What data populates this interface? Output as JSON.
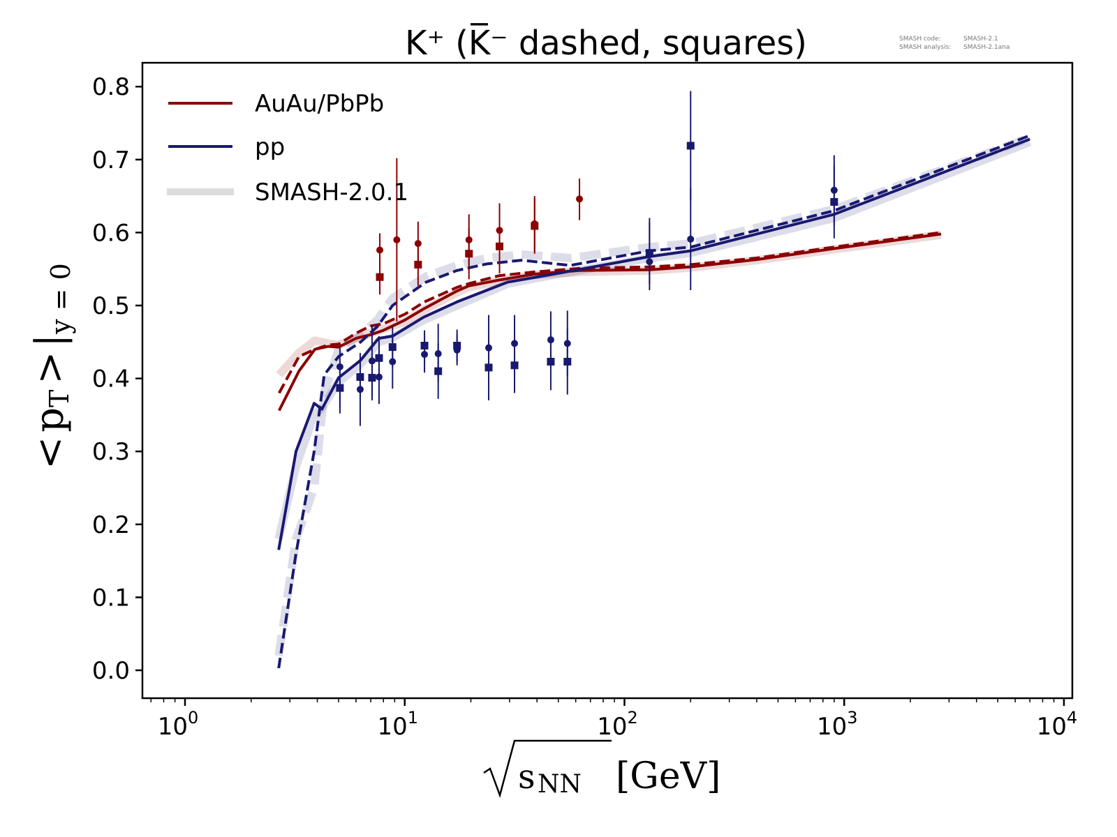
{
  "meta": {
    "line1_key": "SMASH code:",
    "line1_val": "SMASH-2.1",
    "line2_key": "SMASH analysis:",
    "line2_val": "SMASH-2.1ana"
  },
  "colors": {
    "auau": "#8b0000",
    "pp": "#191970",
    "smash_band": "#dcdcdc",
    "axis": "#000000"
  },
  "chart_data": {
    "type": "line",
    "title": "K⁺ (K̅⁻ dashed, squares)",
    "xlabel": "√s_NN [GeV]",
    "xlabel_parts": {
      "sqrt": "√",
      "s": "s",
      "sub": "NN",
      "unit": "[GeV]"
    },
    "ylabel": "<p_T> |_{y=0}",
    "ylabel_parts": {
      "lt": "<",
      "p": "p",
      "sub": "T",
      "gt": ">",
      "bar": "|",
      "cond": "y = 0"
    },
    "xscale": "log",
    "xlim": [
      0.65,
      11500
    ],
    "ylim": [
      -0.04,
      0.835
    ],
    "xticks": [
      {
        "value": 1,
        "base": "10",
        "exp": "0"
      },
      {
        "value": 10,
        "base": "10",
        "exp": "1"
      },
      {
        "value": 100,
        "base": "10",
        "exp": "2"
      },
      {
        "value": 1000,
        "base": "10",
        "exp": "3"
      },
      {
        "value": 10000,
        "base": "10",
        "exp": "4"
      }
    ],
    "yticks": [
      {
        "value": 0.0,
        "label": "0.0"
      },
      {
        "value": 0.1,
        "label": "0.1"
      },
      {
        "value": 0.2,
        "label": "0.2"
      },
      {
        "value": 0.3,
        "label": "0.3"
      },
      {
        "value": 0.4,
        "label": "0.4"
      },
      {
        "value": 0.5,
        "label": "0.5"
      },
      {
        "value": 0.6,
        "label": "0.6"
      },
      {
        "value": 0.7,
        "label": "0.7"
      },
      {
        "value": 0.8,
        "label": "0.8"
      }
    ],
    "grid": false,
    "legend_position": "top-left",
    "legend": [
      {
        "label": "AuAu/PbPb",
        "style": "auau"
      },
      {
        "label": "pp",
        "style": "pp"
      },
      {
        "label": "SMASH-2.0.1",
        "style": "smash_band"
      }
    ],
    "series": [
      {
        "name": "AuAu/PbPb K+ (SMASH-2.1)",
        "system": "auau",
        "particle": "K+",
        "dashed": false,
        "x": [
          2.68,
          3.3,
          3.9,
          4.5,
          5.0,
          6.0,
          7.0,
          8.0,
          10.0,
          12.3,
          17.3,
          19.6,
          27.0,
          39.0,
          62.4,
          130.0,
          200.0,
          400.0,
          900.0,
          2760.0
        ],
        "y": [
          0.356,
          0.41,
          0.44,
          0.444,
          0.443,
          0.455,
          0.46,
          0.466,
          0.48,
          0.496,
          0.52,
          0.527,
          0.535,
          0.543,
          0.548,
          0.549,
          0.553,
          0.563,
          0.578,
          0.598
        ]
      },
      {
        "name": "AuAu/PbPb K- (SMASH-2.1)",
        "system": "auau",
        "particle": "K-",
        "dashed": true,
        "x": [
          2.68,
          3.3,
          3.9,
          4.5,
          5.0,
          6.0,
          7.0,
          8.0,
          10.0,
          12.3,
          17.3,
          19.6,
          27.0,
          39.0,
          62.4,
          130.0,
          200.0,
          400.0,
          900.0,
          2760.0
        ],
        "y": [
          0.38,
          0.43,
          0.44,
          0.446,
          0.447,
          0.462,
          0.472,
          0.475,
          0.488,
          0.505,
          0.525,
          0.53,
          0.541,
          0.546,
          0.551,
          0.553,
          0.556,
          0.565,
          0.58,
          0.6
        ]
      },
      {
        "name": "pp K+ (SMASH-2.1)",
        "system": "pp",
        "particle": "K+",
        "dashed": false,
        "x": [
          2.67,
          3.2,
          3.87,
          4.2,
          5.0,
          6.3,
          7.6,
          8.8,
          12.2,
          17.3,
          29.4,
          47.6,
          130.0,
          200.0,
          900.0,
          7000.0
        ],
        "y": [
          0.165,
          0.3,
          0.366,
          0.358,
          0.401,
          0.425,
          0.455,
          0.458,
          0.484,
          0.505,
          0.532,
          0.543,
          0.567,
          0.575,
          0.625,
          0.728
        ]
      },
      {
        "name": "pp K- (SMASH-2.1)",
        "system": "pp",
        "particle": "K-",
        "dashed": true,
        "x": [
          2.67,
          3.2,
          3.87,
          4.3,
          5.0,
          6.3,
          7.5,
          8.8,
          12.5,
          17.3,
          23.6,
          34.0,
          56.7,
          130.0,
          200.0,
          900.0,
          7000.0
        ],
        "y": [
          0.003,
          0.16,
          0.3,
          0.405,
          0.43,
          0.45,
          0.471,
          0.5,
          0.532,
          0.548,
          0.557,
          0.562,
          0.555,
          0.575,
          0.58,
          0.63,
          0.733
        ]
      },
      {
        "name": "AuAu/PbPb K+ (SMASH-2.0.1)",
        "system": "auau",
        "particle": "K+",
        "dashed": false,
        "band": true,
        "x": [
          2.68,
          3.3,
          3.9,
          4.5,
          5.0,
          6.0,
          7.0,
          8.0,
          10.0,
          12.3,
          17.3,
          19.6,
          27.0,
          39.0,
          62.4,
          130.0,
          200.0,
          400.0,
          900.0,
          2760.0
        ],
        "y": [
          0.405,
          0.435,
          0.452,
          0.448,
          0.446,
          0.455,
          0.462,
          0.468,
          0.478,
          0.494,
          0.518,
          0.525,
          0.534,
          0.542,
          0.546,
          0.548,
          0.552,
          0.562,
          0.577,
          0.597
        ]
      },
      {
        "name": "pp K+ (SMASH-2.0.1)",
        "system": "pp",
        "particle": "K+",
        "dashed": false,
        "band": true,
        "x": [
          2.67,
          3.2,
          3.87,
          4.2,
          5.0,
          6.3,
          7.6,
          8.8,
          12.2,
          17.3,
          29.4,
          47.6,
          130.0,
          200.0,
          900.0,
          7000.0
        ],
        "y": [
          0.18,
          0.28,
          0.35,
          0.36,
          0.395,
          0.42,
          0.45,
          0.456,
          0.48,
          0.5,
          0.53,
          0.542,
          0.565,
          0.572,
          0.62,
          0.724
        ]
      },
      {
        "name": "pp K- (SMASH-2.0.1)",
        "system": "pp",
        "particle": "K-",
        "dashed": true,
        "band": true,
        "x": [
          2.67,
          3.2,
          3.87,
          4.3,
          5.0,
          6.3,
          7.5,
          8.8,
          12.5,
          17.3,
          23.6,
          34.0,
          56.7,
          130.0,
          200.0,
          900.0,
          7000.0
        ],
        "y": [
          0.02,
          0.18,
          0.25,
          0.38,
          0.44,
          0.46,
          0.48,
          0.51,
          0.54,
          0.555,
          0.565,
          0.57,
          0.565,
          0.58,
          0.585,
          0.632,
          0.73
        ]
      }
    ],
    "points": [
      {
        "system": "auau",
        "particle": "K+",
        "marker": "circle",
        "x": 7.7,
        "y": 0.576,
        "yerr": [
          0.553,
          0.599
        ]
      },
      {
        "system": "auau",
        "particle": "K-",
        "marker": "square",
        "x": 7.7,
        "y": 0.539,
        "yerr": [
          0.515,
          0.563
        ]
      },
      {
        "system": "auau",
        "particle": "K+",
        "marker": "circle",
        "x": 9.2,
        "y": 0.59,
        "yerr": [
          0.478,
          0.702
        ]
      },
      {
        "system": "auau",
        "particle": "K+",
        "marker": "circle",
        "x": 11.5,
        "y": 0.585,
        "yerr": [
          0.555,
          0.615
        ]
      },
      {
        "system": "auau",
        "particle": "K-",
        "marker": "square",
        "x": 11.5,
        "y": 0.556,
        "yerr": [
          0.527,
          0.585
        ]
      },
      {
        "system": "auau",
        "particle": "K+",
        "marker": "circle",
        "x": 19.6,
        "y": 0.59,
        "yerr": [
          0.555,
          0.625
        ]
      },
      {
        "system": "auau",
        "particle": "K-",
        "marker": "square",
        "x": 19.6,
        "y": 0.571,
        "yerr": [
          0.536,
          0.606
        ]
      },
      {
        "system": "auau",
        "particle": "K+",
        "marker": "circle",
        "x": 27.0,
        "y": 0.603,
        "yerr": [
          0.566,
          0.64
        ]
      },
      {
        "system": "auau",
        "particle": "K-",
        "marker": "square",
        "x": 27.0,
        "y": 0.581,
        "yerr": [
          0.544,
          0.618
        ]
      },
      {
        "system": "auau",
        "particle": "K+",
        "marker": "circle",
        "x": 39.0,
        "y": 0.612,
        "yerr": [
          0.574,
          0.65
        ]
      },
      {
        "system": "auau",
        "particle": "K-",
        "marker": "square",
        "x": 39.0,
        "y": 0.609,
        "yerr": [
          0.571,
          0.647
        ]
      },
      {
        "system": "auau",
        "particle": "K+",
        "marker": "circle",
        "x": 62.4,
        "y": 0.646,
        "yerr": [
          0.617,
          0.674
        ]
      },
      {
        "system": "pp",
        "particle": "K+",
        "marker": "circle",
        "x": 5.07,
        "y": 0.416,
        "yerr": [
          0.352,
          0.443
        ]
      },
      {
        "system": "pp",
        "particle": "K-",
        "marker": "square",
        "x": 5.07,
        "y": 0.387,
        "yerr": [
          0.36,
          0.414
        ]
      },
      {
        "system": "pp",
        "particle": "K+",
        "marker": "circle",
        "x": 6.27,
        "y": 0.385,
        "yerr": [
          0.335,
          0.435
        ]
      },
      {
        "system": "pp",
        "particle": "K-",
        "marker": "square",
        "x": 6.27,
        "y": 0.402,
        "yerr": [
          0.375,
          0.429
        ]
      },
      {
        "system": "pp",
        "particle": "K+",
        "marker": "circle",
        "x": 7.1,
        "y": 0.424,
        "yerr": [
          0.375,
          0.473
        ]
      },
      {
        "system": "pp",
        "particle": "K-",
        "marker": "square",
        "x": 7.1,
        "y": 0.401,
        "yerr": [
          0.37,
          0.432
        ]
      },
      {
        "system": "pp",
        "particle": "K+",
        "marker": "circle",
        "x": 7.64,
        "y": 0.402,
        "yerr": [
          0.365,
          0.439
        ]
      },
      {
        "system": "pp",
        "particle": "K-",
        "marker": "square",
        "x": 7.64,
        "y": 0.428,
        "yerr": [
          0.398,
          0.458
        ]
      },
      {
        "system": "pp",
        "particle": "K+",
        "marker": "circle",
        "x": 8.8,
        "y": 0.423,
        "yerr": [
          0.386,
          0.46
        ]
      },
      {
        "system": "pp",
        "particle": "K-",
        "marker": "square",
        "x": 8.8,
        "y": 0.443,
        "yerr": [
          0.415,
          0.471
        ]
      },
      {
        "system": "pp",
        "particle": "K+",
        "marker": "circle",
        "x": 12.3,
        "y": 0.433,
        "yerr": [
          0.408,
          0.458
        ]
      },
      {
        "system": "pp",
        "particle": "K-",
        "marker": "square",
        "x": 12.3,
        "y": 0.445,
        "yerr": [
          0.42,
          0.466
        ]
      },
      {
        "system": "pp",
        "particle": "K+",
        "marker": "circle",
        "x": 14.2,
        "y": 0.434,
        "yerr": [
          0.395,
          0.475
        ]
      },
      {
        "system": "pp",
        "particle": "K-",
        "marker": "square",
        "x": 14.2,
        "y": 0.41,
        "yerr": [
          0.372,
          0.448
        ]
      },
      {
        "system": "pp",
        "particle": "K+",
        "marker": "circle",
        "x": 17.3,
        "y": 0.439,
        "yerr": [
          0.418,
          0.46
        ]
      },
      {
        "system": "pp",
        "particle": "K-",
        "marker": "square",
        "x": 17.3,
        "y": 0.445,
        "yerr": [
          0.423,
          0.467
        ]
      },
      {
        "system": "pp",
        "particle": "K+",
        "marker": "circle",
        "x": 24.1,
        "y": 0.442,
        "yerr": [
          0.397,
          0.487
        ]
      },
      {
        "system": "pp",
        "particle": "K-",
        "marker": "square",
        "x": 24.1,
        "y": 0.415,
        "yerr": [
          0.37,
          0.46
        ]
      },
      {
        "system": "pp",
        "particle": "K+",
        "marker": "circle",
        "x": 31.6,
        "y": 0.448,
        "yerr": [
          0.41,
          0.487
        ]
      },
      {
        "system": "pp",
        "particle": "K-",
        "marker": "square",
        "x": 31.6,
        "y": 0.418,
        "yerr": [
          0.38,
          0.456
        ]
      },
      {
        "system": "pp",
        "particle": "K+",
        "marker": "circle",
        "x": 46.2,
        "y": 0.453,
        "yerr": [
          0.414,
          0.492
        ]
      },
      {
        "system": "pp",
        "particle": "K-",
        "marker": "square",
        "x": 46.2,
        "y": 0.423,
        "yerr": [
          0.384,
          0.462
        ]
      },
      {
        "system": "pp",
        "particle": "K+",
        "marker": "circle",
        "x": 55.0,
        "y": 0.448,
        "yerr": [
          0.403,
          0.493
        ]
      },
      {
        "system": "pp",
        "particle": "K-",
        "marker": "square",
        "x": 55.0,
        "y": 0.423,
        "yerr": [
          0.378,
          0.468
        ]
      },
      {
        "system": "pp",
        "particle": "K+",
        "marker": "circle",
        "x": 130.0,
        "y": 0.56,
        "yerr": [
          0.521,
          0.62
        ]
      },
      {
        "system": "pp",
        "particle": "K-",
        "marker": "square",
        "x": 130.0,
        "y": 0.572,
        "yerr": [
          0.53,
          0.614
        ]
      },
      {
        "system": "pp",
        "particle": "K+",
        "marker": "circle",
        "x": 200.0,
        "y": 0.591,
        "yerr": [
          0.521,
          0.661
        ]
      },
      {
        "system": "pp",
        "particle": "K-",
        "marker": "square",
        "x": 200.0,
        "y": 0.719,
        "yerr": [
          0.644,
          0.794
        ]
      },
      {
        "system": "pp",
        "particle": "K+",
        "marker": "circle",
        "x": 900.0,
        "y": 0.658,
        "yerr": [
          0.61,
          0.706
        ]
      },
      {
        "system": "pp",
        "particle": "K-",
        "marker": "square",
        "x": 900.0,
        "y": 0.642,
        "yerr": [
          0.592,
          0.692
        ]
      }
    ]
  }
}
